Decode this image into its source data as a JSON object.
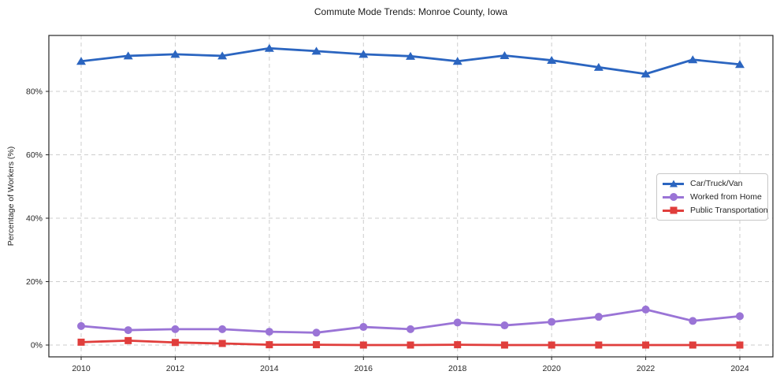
{
  "chart_data": {
    "type": "line",
    "title": "Commute Mode Trends: Monroe County, Iowa",
    "xlabel": "",
    "ylabel": "Percentage of Workers (%)",
    "x": [
      2010,
      2011,
      2012,
      2013,
      2014,
      2015,
      2016,
      2017,
      2018,
      2019,
      2020,
      2021,
      2022,
      2023,
      2024
    ],
    "x_ticks": [
      2010,
      2012,
      2014,
      2016,
      2018,
      2020,
      2022,
      2024
    ],
    "x_tick_labels": [
      "2010",
      "2012",
      "2014",
      "2016",
      "2018",
      "2020",
      "2022",
      "2024"
    ],
    "y_ticks": [
      0,
      20,
      40,
      60,
      80
    ],
    "y_tick_labels": [
      "0%",
      "20%",
      "40%",
      "60%",
      "80%"
    ],
    "ylim": [
      -3.7,
      97.6
    ],
    "grid": true,
    "grid_style": "dashed",
    "legend_position": "center right",
    "series": [
      {
        "name": "Car/Truck/Van",
        "color": "#2b65c0",
        "marker": "triangle",
        "values": [
          89.5,
          91.2,
          91.7,
          91.2,
          93.6,
          92.7,
          91.7,
          91.1,
          89.5,
          91.3,
          89.8,
          87.6,
          85.5,
          90.0,
          88.5
        ]
      },
      {
        "name": "Worked from Home",
        "color": "#9a74d6",
        "marker": "circle",
        "values": [
          6.0,
          4.7,
          5.0,
          5.0,
          4.2,
          3.9,
          5.7,
          5.0,
          7.1,
          6.2,
          7.3,
          8.9,
          11.2,
          7.6,
          9.1
        ]
      },
      {
        "name": "Public Transportation",
        "color": "#e03e3c",
        "marker": "square",
        "values": [
          0.9,
          1.4,
          0.8,
          0.5,
          0.1,
          0.1,
          0.0,
          0.0,
          0.1,
          0.0,
          0.0,
          0.0,
          0.0,
          0.0,
          0.0
        ]
      }
    ]
  }
}
